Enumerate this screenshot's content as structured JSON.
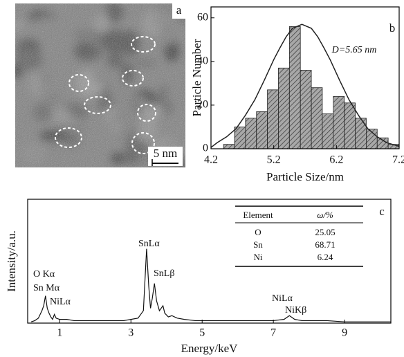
{
  "panel_a": {
    "label": "a",
    "scale_bar": "5 nm"
  },
  "chart_data": [
    {
      "type": "histogram",
      "label": "b",
      "xlabel": "Particle Size/nm",
      "ylabel": "Particle Number",
      "annotation": "D=5.65 nm",
      "bins": [
        4.4,
        4.575,
        4.75,
        4.925,
        5.1,
        5.275,
        5.45,
        5.625,
        5.8,
        5.975,
        6.15,
        6.325,
        6.5,
        6.675,
        6.85,
        7.025,
        7.2
      ],
      "values": [
        2,
        10,
        14,
        17,
        27,
        37,
        56,
        36,
        28,
        16,
        24,
        21,
        14,
        9,
        5,
        2
      ],
      "color": "#9a9a9a",
      "fit": {
        "x": [
          4.2,
          4.3,
          4.45,
          4.6,
          4.75,
          4.9,
          5.05,
          5.2,
          5.3,
          5.4,
          5.5,
          5.65,
          5.8,
          5.9,
          6.0,
          6.1,
          6.25,
          6.4,
          6.55,
          6.7,
          6.85,
          7.0,
          7.2
        ],
        "values": [
          0.6,
          2.8,
          5.5,
          9.2,
          15.4,
          22.5,
          31.4,
          40.8,
          46.3,
          51.4,
          55.2,
          57,
          55.2,
          51.4,
          46.3,
          40.8,
          31.4,
          22.5,
          15.4,
          9.2,
          5.5,
          2.8,
          1.1
        ],
        "color": "#222222"
      },
      "xlim": [
        4.2,
        7.2
      ],
      "ylim": [
        0,
        65
      ],
      "xticks": [
        4.2,
        5.2,
        6.2,
        7.2
      ],
      "yticks": [
        0,
        20,
        40,
        60
      ]
    },
    {
      "type": "line",
      "label": "c",
      "xlabel": "Energy/keV",
      "ylabel": "Intensity/a.u.",
      "x": [
        0.2,
        0.3,
        0.4,
        0.5,
        0.55,
        0.6,
        0.65,
        0.7,
        0.75,
        0.8,
        0.85,
        0.9,
        1.0,
        1.2,
        1.4,
        1.6,
        1.8,
        2.0,
        2.2,
        2.4,
        2.6,
        2.8,
        3.0,
        3.2,
        3.35,
        3.44,
        3.5,
        3.55,
        3.6,
        3.66,
        3.72,
        3.8,
        3.9,
        3.95,
        4.05,
        4.15,
        4.3,
        4.5,
        4.8,
        5.0,
        5.5,
        6.0,
        6.5,
        7.0,
        7.3,
        7.45,
        7.5,
        7.6,
        7.8,
        8.0,
        8.5,
        9.0,
        9.5,
        10.0,
        10.3
      ],
      "series": [
        {
          "name": "EDS",
          "color": "#111111",
          "values": [
            1,
            2,
            4,
            10,
            14,
            22,
            12,
            8,
            5,
            3,
            7,
            4,
            3,
            3,
            2,
            2,
            2,
            2,
            2,
            2,
            2,
            2,
            3,
            4,
            10,
            60,
            30,
            12,
            20,
            32,
            18,
            10,
            14,
            8,
            5,
            6,
            4,
            3,
            2,
            2,
            2,
            2,
            2,
            2,
            3,
            6,
            5,
            3,
            2,
            2,
            2,
            1,
            1,
            1,
            1
          ]
        }
      ],
      "annotations": [
        "O Kα",
        "Sn Mα",
        "NiLα",
        "SnLα",
        "SnLβ",
        "NiLα",
        "NiKβ"
      ],
      "xlim": [
        0.1,
        10.3
      ],
      "ylim": [
        0,
        100
      ],
      "xticks": [
        1,
        3,
        5,
        7,
        9
      ],
      "table": {
        "header": [
          "Element",
          "ω/%"
        ],
        "rows": [
          [
            "O",
            25.05
          ],
          [
            "Sn",
            68.71
          ],
          [
            "Ni",
            6.24
          ]
        ]
      }
    }
  ]
}
